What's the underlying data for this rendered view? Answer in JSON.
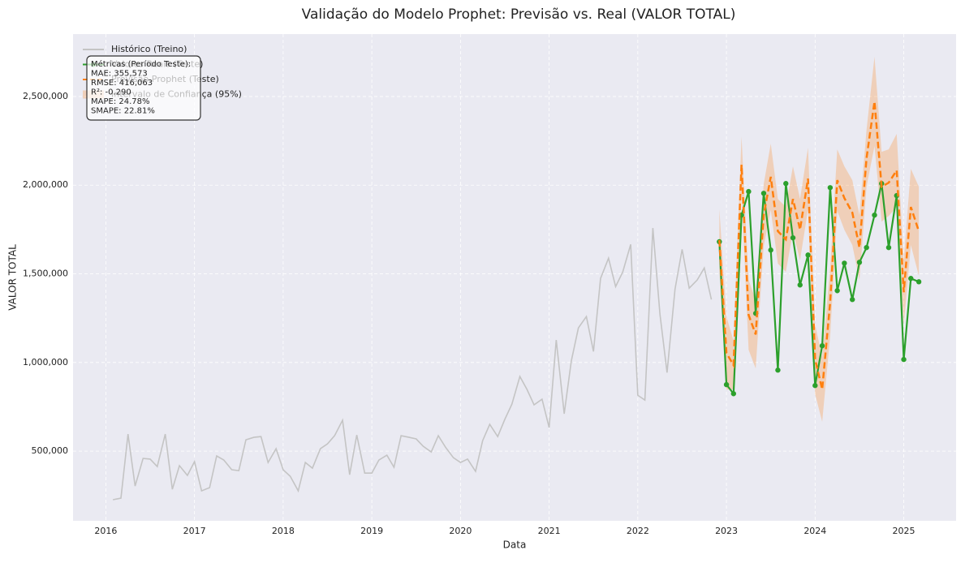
{
  "chart_data": {
    "type": "line",
    "title": "Validação do Modelo Prophet: Previsão vs. Real (VALOR TOTAL)",
    "x_label": "Data",
    "y_label": "VALOR TOTAL",
    "xlim": [
      2015.63,
      2025.59
    ],
    "ylim": [
      107000,
      2852000
    ],
    "xticks": [
      2016,
      2017,
      2018,
      2019,
      2020,
      2021,
      2022,
      2023,
      2024,
      2025
    ],
    "yticks": [
      {
        "value": 500000,
        "label": "500,000"
      },
      {
        "value": 1000000,
        "label": "1,000,000"
      },
      {
        "value": 1500000,
        "label": "1,500,000"
      },
      {
        "value": 2000000,
        "label": "2,000,000"
      },
      {
        "value": 2500000,
        "label": "2,500,000"
      }
    ],
    "grid": true,
    "legend": "upper left",
    "series": [
      {
        "name": "Histórico (Treino)",
        "color": "#c4c4c4",
        "dashed": false,
        "markers": false,
        "x": [
          2016.08,
          2016.17,
          2016.25,
          2016.33,
          2016.42,
          2016.5,
          2016.58,
          2016.67,
          2016.75,
          2016.83,
          2016.92,
          2017.0,
          2017.08,
          2017.17,
          2017.25,
          2017.33,
          2017.42,
          2017.5,
          2017.58,
          2017.67,
          2017.75,
          2017.83,
          2017.92,
          2018.0,
          2018.08,
          2018.17,
          2018.25,
          2018.33,
          2018.42,
          2018.5,
          2018.58,
          2018.67,
          2018.75,
          2018.83,
          2018.92,
          2019.0,
          2019.08,
          2019.17,
          2019.25,
          2019.33,
          2019.42,
          2019.5,
          2019.58,
          2019.67,
          2019.75,
          2019.83,
          2019.92,
          2020.0,
          2020.08,
          2020.17,
          2020.25,
          2020.33,
          2020.42,
          2020.5,
          2020.58,
          2020.67,
          2020.75,
          2020.83,
          2020.92,
          2021.0,
          2021.08,
          2021.17,
          2021.25,
          2021.33,
          2021.42,
          2021.5,
          2021.58,
          2021.67,
          2021.75,
          2021.83,
          2021.92,
          2022.0,
          2022.08,
          2022.17,
          2022.25,
          2022.33,
          2022.42,
          2022.5,
          2022.58,
          2022.67,
          2022.75,
          2022.83
        ],
        "values": [
          226000,
          235000,
          596000,
          303000,
          459000,
          455000,
          413000,
          596000,
          285000,
          418000,
          363000,
          441000,
          276000,
          294000,
          473000,
          450000,
          395000,
          390000,
          564000,
          578000,
          582000,
          436000,
          514000,
          395000,
          358000,
          276000,
          436000,
          404000,
          514000,
          541000,
          587000,
          674000,
          367000,
          591000,
          376000,
          376000,
          450000,
          477000,
          409000,
          587000,
          578000,
          569000,
          527000,
          495000,
          587000,
          523000,
          463000,
          436000,
          455000,
          386000,
          559000,
          651000,
          582000,
          679000,
          765000,
          921000,
          848000,
          761000,
          793000,
          633000,
          1127000,
          711000,
          1008000,
          1195000,
          1259000,
          1062000,
          1474000,
          1588000,
          1428000,
          1510000,
          1666000,
          815000,
          788000,
          1758000,
          1272000,
          943000,
          1414000,
          1638000,
          1419000,
          1465000,
          1533000,
          1355000
        ]
      },
      {
        "name": "Valores Reais (Teste)",
        "color": "#2ca02c",
        "dashed": false,
        "markers": true,
        "x": [
          2022.92,
          2023.0,
          2023.08,
          2023.17,
          2023.25,
          2023.33,
          2023.42,
          2023.5,
          2023.58,
          2023.67,
          2023.75,
          2023.83,
          2023.92,
          2024.0,
          2024.08,
          2024.17,
          2024.25,
          2024.33,
          2024.42,
          2024.5,
          2024.58,
          2024.67,
          2024.75,
          2024.83,
          2024.92,
          2025.0,
          2025.08,
          2025.17
        ],
        "values": [
          1681000,
          875000,
          824000,
          1831000,
          1964000,
          1277000,
          1954000,
          1634000,
          957000,
          2009000,
          1703000,
          1437000,
          1606000,
          870000,
          1094000,
          1986000,
          1405000,
          1560000,
          1355000,
          1565000,
          1648000,
          1831000,
          2009000,
          1648000,
          1941000,
          1017000,
          1474000,
          1455000
        ]
      },
      {
        "name": "Previsão Prophet (Teste)",
        "color": "#ff7f0e",
        "dashed": true,
        "markers": false,
        "x": [
          2022.92,
          2023.0,
          2023.08,
          2023.17,
          2023.25,
          2023.33,
          2023.42,
          2023.5,
          2023.58,
          2023.67,
          2023.75,
          2023.83,
          2023.92,
          2024.0,
          2024.08,
          2024.17,
          2024.25,
          2024.33,
          2024.42,
          2024.5,
          2024.58,
          2024.67,
          2024.75,
          2024.83,
          2024.92,
          2025.0,
          2025.08,
          2025.17
        ],
        "values": [
          1690000,
          1053000,
          985000,
          2115000,
          1268000,
          1158000,
          1831000,
          2047000,
          1740000,
          1694000,
          1922000,
          1749000,
          2037000,
          1017000,
          848000,
          1341000,
          2028000,
          1927000,
          1845000,
          1648000,
          2152000,
          2472000,
          1991000,
          2014000,
          2083000,
          1396000,
          1877000,
          1740000
        ]
      }
    ],
    "band": {
      "name": "Intervalo de Confiança (95%)",
      "color": "#ff7f0e",
      "x": [
        2022.92,
        2023.0,
        2023.08,
        2023.17,
        2023.25,
        2023.33,
        2023.42,
        2023.5,
        2023.58,
        2023.67,
        2023.75,
        2023.83,
        2023.92,
        2024.0,
        2024.08,
        2024.17,
        2024.25,
        2024.33,
        2024.42,
        2024.5,
        2024.58,
        2024.67,
        2024.75,
        2024.83,
        2024.92,
        2025.0,
        2025.08,
        2025.17
      ],
      "lower": [
        1516000,
        847000,
        848000,
        1955000,
        1071000,
        966000,
        1657000,
        1860000,
        1558000,
        1511000,
        1738000,
        1576000,
        1863000,
        821000,
        666000,
        1149000,
        1854000,
        1748000,
        1662000,
        1465000,
        1992000,
        2220000,
        1794000,
        1826000,
        1877000,
        1213000,
        1662000,
        1489000
      ],
      "upper": [
        1864000,
        1259000,
        1122000,
        2275000,
        1465000,
        1350000,
        2005000,
        2234000,
        1922000,
        1877000,
        2106000,
        1922000,
        2211000,
        1213000,
        1030000,
        1533000,
        2202000,
        2106000,
        2028000,
        1831000,
        2312000,
        2724000,
        2188000,
        2202000,
        2289000,
        1579000,
        2092000,
        1991000
      ]
    },
    "metrics_box": [
      "Métricas (Período Teste):",
      "MAE: 355,573",
      "RMSE: 416,063",
      "R²: -0.290",
      "MAPE: 24.78%",
      "SMAPE: 22.81%"
    ]
  }
}
